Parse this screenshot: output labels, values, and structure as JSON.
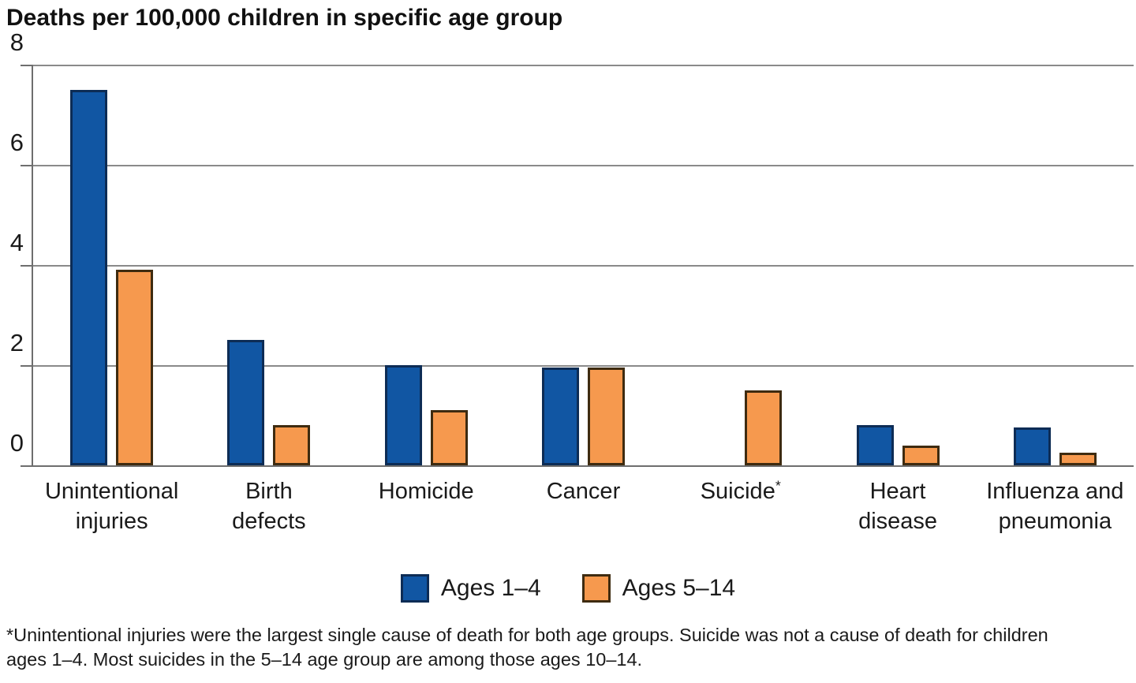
{
  "chart_data": {
    "type": "bar",
    "title": "Deaths per 100,000 children in specific age group",
    "ylabel": "",
    "xlabel": "",
    "ylim": [
      0,
      8
    ],
    "yticks": [
      0,
      2,
      4,
      6,
      8
    ],
    "grid": true,
    "legend_position": "bottom",
    "categories": [
      {
        "label": "Unintentional injuries",
        "lines": [
          "Unintentional",
          "injuries"
        ],
        "sup": ""
      },
      {
        "label": "Birth defects",
        "lines": [
          "Birth",
          "defects"
        ],
        "sup": ""
      },
      {
        "label": "Homicide",
        "lines": [
          "Homicide"
        ],
        "sup": ""
      },
      {
        "label": "Cancer",
        "lines": [
          "Cancer"
        ],
        "sup": ""
      },
      {
        "label": "Suicide",
        "lines": [
          "Suicide"
        ],
        "sup": "*"
      },
      {
        "label": "Heart disease",
        "lines": [
          "Heart",
          "disease"
        ],
        "sup": ""
      },
      {
        "label": "Influenza and pneumonia",
        "lines": [
          "Influenza and",
          "pneumonia"
        ],
        "sup": ""
      }
    ],
    "series": [
      {
        "name": "Ages 1–4",
        "color": "#1156A3",
        "border_color": "#0D2C55",
        "values": [
          7.5,
          2.5,
          2.0,
          1.95,
          null,
          0.8,
          0.75
        ]
      },
      {
        "name": "Ages 5–14",
        "color": "#F6994E",
        "border_color": "#3E2B10",
        "values": [
          3.9,
          0.8,
          1.1,
          1.95,
          1.5,
          0.4,
          0.25
        ]
      }
    ],
    "footnote": "*Unintentional injuries were the largest single cause of death for both age groups. Suicide was not a cause of death for children ages 1–4. Most suicides in the 5–14 age group are among those ages 10–14.",
    "colors": {
      "gridline": "#8a8a8a",
      "axis": "#6e6e6e",
      "text": "#1a1a1a"
    }
  }
}
